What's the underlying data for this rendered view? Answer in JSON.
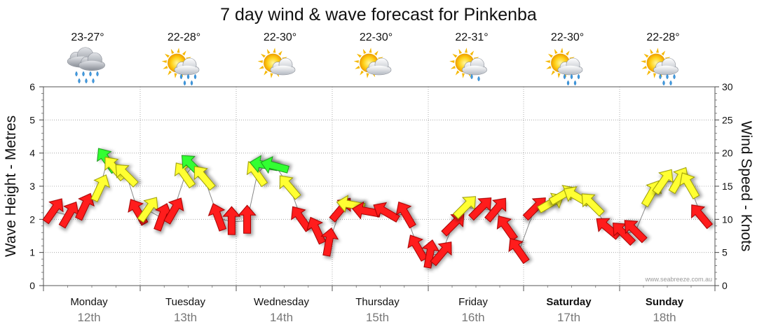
{
  "chart_data": {
    "type": "line",
    "title": "7 day wind & wave forecast for Pinkenba",
    "ylabel": "Wave Height - Metres",
    "y2label": "Wind Speed - Knots",
    "ylim": [
      0,
      6
    ],
    "y2lim": [
      0,
      30
    ],
    "yticks": [
      "0",
      "1",
      "2",
      "3",
      "4",
      "5",
      "6"
    ],
    "y2ticks": [
      "0",
      "5",
      "10",
      "15",
      "20",
      "25",
      "30"
    ],
    "watermark": "www.seabreeze.com.au",
    "days": [
      {
        "name": "Monday",
        "date": "12th",
        "bold": false,
        "temp": "23-27°",
        "icon": "heavy-rain-cloud-icon"
      },
      {
        "name": "Tuesday",
        "date": "13th",
        "bold": false,
        "temp": "22-28°",
        "icon": "sun-rain-cloud-icon"
      },
      {
        "name": "Wednesday",
        "date": "14th",
        "bold": false,
        "temp": "22-30°",
        "icon": "sun-cloud-icon"
      },
      {
        "name": "Thursday",
        "date": "15th",
        "bold": false,
        "temp": "22-30°",
        "icon": "sun-cloud-icon"
      },
      {
        "name": "Friday",
        "date": "16th",
        "bold": false,
        "temp": "22-31°",
        "icon": "sun-light-rain-cloud-icon"
      },
      {
        "name": "Saturday",
        "date": "17th",
        "bold": true,
        "temp": "22-30°",
        "icon": "sun-rain-cloud-icon"
      },
      {
        "name": "Sunday",
        "date": "18th",
        "bold": true,
        "temp": "22-28°",
        "icon": "sun-rain-cloud-icon"
      }
    ],
    "series": [
      {
        "name": "Wind speed (knots)",
        "values": [
          {
            "t": 0.05,
            "v": 11.2,
            "dir": 35,
            "c": "red"
          },
          {
            "t": 0.25,
            "v": 10.6,
            "dir": 30,
            "c": "red"
          },
          {
            "t": 0.45,
            "v": 11.8,
            "dir": 25,
            "c": "red"
          },
          {
            "t": 0.65,
            "v": 14.6,
            "dir": 25,
            "c": "yellow"
          },
          {
            "t": 0.75,
            "v": 18.8,
            "dir": -35,
            "c": "green"
          },
          {
            "t": 0.85,
            "v": 17.6,
            "dir": -40,
            "c": "yellow"
          },
          {
            "t": 1.0,
            "v": 16.6,
            "dir": -45,
            "c": "yellow"
          },
          {
            "t": 1.15,
            "v": 11.0,
            "dir": -30,
            "c": "red"
          },
          {
            "t": 1.27,
            "v": 11.4,
            "dir": 35,
            "c": "yellow"
          },
          {
            "t": 1.45,
            "v": 10.2,
            "dir": 20,
            "c": "red"
          },
          {
            "t": 1.6,
            "v": 11.2,
            "dir": 30,
            "c": "red"
          },
          {
            "t": 1.75,
            "v": 16.6,
            "dir": -35,
            "c": "yellow"
          },
          {
            "t": 1.85,
            "v": 18.0,
            "dir": -45,
            "c": "green"
          },
          {
            "t": 2.0,
            "v": 16.2,
            "dir": -40,
            "c": "yellow"
          },
          {
            "t": 2.18,
            "v": 10.2,
            "dir": -20,
            "c": "red"
          },
          {
            "t": 2.35,
            "v": 9.6,
            "dir": 0,
            "c": "red"
          },
          {
            "t": 2.55,
            "v": 9.8,
            "dir": 0,
            "c": "red"
          },
          {
            "t": 2.68,
            "v": 16.8,
            "dir": -35,
            "c": "yellow"
          },
          {
            "t": 2.78,
            "v": 18.2,
            "dir": -80,
            "c": "green"
          },
          {
            "t": 2.92,
            "v": 18.0,
            "dir": -75,
            "c": "green"
          },
          {
            "t": 3.1,
            "v": 14.8,
            "dir": -40,
            "c": "yellow"
          },
          {
            "t": 3.25,
            "v": 10.0,
            "dir": -35,
            "c": "red"
          },
          {
            "t": 3.45,
            "v": 8.2,
            "dir": -25,
            "c": "red"
          },
          {
            "t": 3.6,
            "v": 6.4,
            "dir": 10,
            "c": "red"
          },
          {
            "t": 3.75,
            "v": 11.4,
            "dir": 40,
            "c": "red"
          },
          {
            "t": 3.9,
            "v": 12.2,
            "dir": -80,
            "c": "yellow"
          },
          {
            "t": 4.1,
            "v": 11.2,
            "dir": -80,
            "c": "red"
          },
          {
            "t": 4.35,
            "v": 11.0,
            "dir": -60,
            "c": "red"
          },
          {
            "t": 4.6,
            "v": 10.6,
            "dir": -30,
            "c": "red"
          },
          {
            "t": 4.75,
            "v": 5.6,
            "dir": -30,
            "c": "red"
          },
          {
            "t": 4.9,
            "v": 4.6,
            "dir": 10,
            "c": "red"
          },
          {
            "t": 5.05,
            "v": 4.8,
            "dir": 40,
            "c": "red"
          },
          {
            "t": 5.2,
            "v": 9.2,
            "dir": 45,
            "c": "red"
          },
          {
            "t": 5.35,
            "v": 11.8,
            "dir": 45,
            "c": "yellow"
          },
          {
            "t": 5.55,
            "v": 11.6,
            "dir": 45,
            "c": "red"
          },
          {
            "t": 5.75,
            "v": 11.4,
            "dir": 40,
            "c": "red"
          },
          {
            "t": 5.9,
            "v": 8.6,
            "dir": -35,
            "c": "red"
          },
          {
            "t": 6.05,
            "v": 5.2,
            "dir": -35,
            "c": "red"
          },
          {
            "t": 6.25,
            "v": 11.6,
            "dir": 45,
            "c": "red"
          },
          {
            "t": 6.45,
            "v": 12.4,
            "dir": 60,
            "c": "yellow"
          },
          {
            "t": 6.6,
            "v": 13.6,
            "dir": 60,
            "c": "yellow"
          },
          {
            "t": 6.8,
            "v": 13.4,
            "dir": -60,
            "c": "yellow"
          },
          {
            "t": 7.0,
            "v": 12.2,
            "dir": -45,
            "c": "yellow"
          },
          {
            "t": 7.2,
            "v": 8.6,
            "dir": -50,
            "c": "red"
          },
          {
            "t": 7.4,
            "v": 7.8,
            "dir": -45,
            "c": "red"
          },
          {
            "t": 7.55,
            "v": 8.2,
            "dir": -45,
            "c": "red"
          },
          {
            "t": 7.75,
            "v": 13.8,
            "dir": 30,
            "c": "yellow"
          },
          {
            "t": 7.9,
            "v": 15.6,
            "dir": 35,
            "c": "yellow"
          },
          {
            "t": 8.1,
            "v": 15.8,
            "dir": 30,
            "c": "yellow"
          },
          {
            "t": 8.25,
            "v": 15.0,
            "dir": -30,
            "c": "yellow"
          },
          {
            "t": 8.4,
            "v": 10.4,
            "dir": -40,
            "c": "red"
          }
        ]
      }
    ]
  }
}
